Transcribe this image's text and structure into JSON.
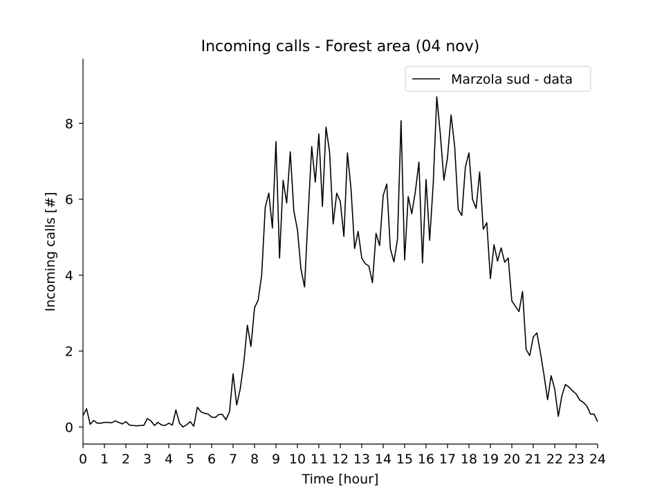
{
  "chart_data": {
    "type": "line",
    "title": "Incoming calls - Forest area (04 nov)",
    "xlabel": "Time [hour]",
    "ylabel": "Incoming calls [#]",
    "xlim": [
      0,
      24
    ],
    "ylim": [
      -0.45,
      9.7
    ],
    "xticks": [
      0,
      1,
      2,
      3,
      4,
      5,
      6,
      7,
      8,
      9,
      10,
      11,
      12,
      13,
      14,
      15,
      16,
      17,
      18,
      19,
      20,
      21,
      22,
      23,
      24
    ],
    "yticks": [
      0,
      2,
      4,
      6,
      8
    ],
    "grid": false,
    "legend_position": "top-right",
    "line_color": "#000000",
    "series": [
      {
        "name": "Marzola sud - data",
        "x": [
          0,
          0.167,
          0.333,
          0.5,
          0.667,
          0.833,
          1,
          1.167,
          1.333,
          1.5,
          1.667,
          1.833,
          2,
          2.167,
          2.333,
          2.5,
          2.667,
          2.833,
          3,
          3.167,
          3.333,
          3.5,
          3.667,
          3.833,
          4,
          4.167,
          4.333,
          4.5,
          4.667,
          4.833,
          5,
          5.167,
          5.333,
          5.5,
          5.667,
          5.833,
          6,
          6.167,
          6.333,
          6.5,
          6.667,
          6.833,
          7,
          7.167,
          7.333,
          7.5,
          7.667,
          7.833,
          8,
          8.167,
          8.333,
          8.5,
          8.667,
          8.833,
          9,
          9.167,
          9.333,
          9.5,
          9.667,
          9.833,
          10,
          10.167,
          10.333,
          10.5,
          10.667,
          10.833,
          11,
          11.167,
          11.333,
          11.5,
          11.667,
          11.833,
          12,
          12.167,
          12.333,
          12.5,
          12.667,
          12.833,
          13,
          13.167,
          13.333,
          13.5,
          13.667,
          13.833,
          14,
          14.167,
          14.333,
          14.5,
          14.667,
          14.833,
          15,
          15.167,
          15.333,
          15.5,
          15.667,
          15.833,
          16,
          16.167,
          16.333,
          16.5,
          16.667,
          16.833,
          17,
          17.167,
          17.333,
          17.5,
          17.667,
          17.833,
          18,
          18.167,
          18.333,
          18.5,
          18.667,
          18.833,
          19,
          19.167,
          19.333,
          19.5,
          19.667,
          19.833,
          20,
          20.167,
          20.333,
          20.5,
          20.667,
          20.833,
          21,
          21.167,
          21.333,
          21.5,
          21.667,
          21.833,
          22,
          22.167,
          22.333,
          22.5,
          22.667,
          22.833,
          23,
          23.167,
          23.333,
          23.5,
          23.667,
          23.833,
          24
        ],
        "values": [
          0.3,
          0.48,
          0.07,
          0.17,
          0.1,
          0.1,
          0.12,
          0.12,
          0.11,
          0.16,
          0.12,
          0.08,
          0.14,
          0.05,
          0.04,
          0.03,
          0.04,
          0.04,
          0.22,
          0.16,
          0.04,
          0.12,
          0.05,
          0.04,
          0.1,
          0.05,
          0.45,
          0.1,
          0.0,
          0.06,
          0.14,
          0.02,
          0.52,
          0.4,
          0.36,
          0.34,
          0.26,
          0.25,
          0.33,
          0.33,
          0.19,
          0.4,
          1.4,
          0.58,
          1.0,
          1.7,
          2.68,
          2.12,
          3.14,
          3.34,
          4.0,
          5.79,
          6.16,
          5.24,
          7.52,
          4.45,
          6.5,
          5.9,
          7.25,
          5.69,
          5.2,
          4.15,
          3.69,
          5.6,
          7.39,
          6.45,
          7.72,
          5.81,
          7.9,
          7.25,
          5.35,
          6.16,
          5.94,
          5.02,
          7.22,
          6.27,
          4.7,
          5.15,
          4.45,
          4.3,
          4.24,
          3.8,
          5.1,
          4.78,
          6.1,
          6.4,
          4.7,
          4.35,
          4.95,
          8.07,
          4.4,
          6.07,
          5.62,
          6.2,
          6.98,
          4.32,
          6.52,
          4.92,
          6.4,
          8.7,
          7.7,
          6.5,
          7.1,
          8.22,
          7.4,
          5.73,
          5.57,
          6.85,
          7.22,
          6.0,
          5.76,
          6.72,
          5.21,
          5.38,
          3.91,
          4.8,
          4.37,
          4.72,
          4.34,
          4.45,
          3.32,
          3.18,
          3.04,
          3.57,
          2.04,
          1.88,
          2.37,
          2.48,
          1.96,
          1.37,
          0.72,
          1.35,
          1.0,
          0.28,
          0.82,
          1.12,
          1.05,
          0.95,
          0.87,
          0.71,
          0.65,
          0.55,
          0.34,
          0.34,
          0.14
        ]
      }
    ]
  }
}
